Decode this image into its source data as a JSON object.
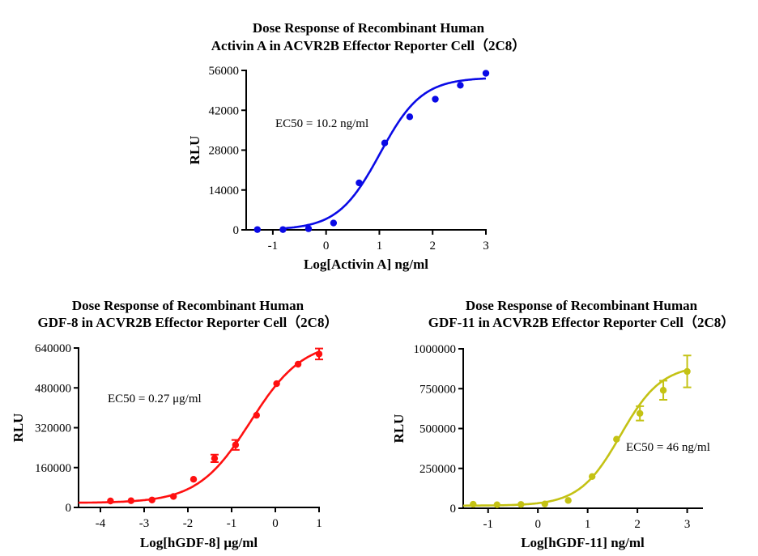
{
  "chart_data": [
    {
      "type": "scatter",
      "title_lines": [
        "Dose Response of Recombinant Human",
        "Activin A in ACVR2B Effector Reporter Cell（2C8）"
      ],
      "xlabel": "Log[Activin A] ng/ml",
      "ylabel": "RLU",
      "annotation": "EC50 = 10.2 ng/ml",
      "color": "#0a0ae6",
      "xlim": [
        -1.5,
        3
      ],
      "ylim": [
        0,
        56000
      ],
      "xticks": [
        -1,
        0,
        1,
        2,
        3
      ],
      "yticks": [
        0,
        14000,
        28000,
        42000,
        56000
      ],
      "x": [
        -1.29,
        -0.81,
        -0.33,
        0.14,
        0.62,
        1.1,
        1.57,
        2.05,
        2.52,
        3.0
      ],
      "y": [
        100,
        100,
        400,
        2400,
        16500,
        30500,
        39700,
        45900,
        50800,
        55000
      ],
      "error": [
        null,
        null,
        null,
        null,
        null,
        null,
        null,
        null,
        null,
        null
      ],
      "fit_curve": true,
      "grid": false
    },
    {
      "type": "scatter",
      "title_lines": [
        "Dose Response of Recombinant Human",
        "GDF-8 in ACVR2B Effector Reporter Cell（2C8）"
      ],
      "xlabel": "Log[hGDF-8] μg/ml",
      "ylabel": "RLU",
      "annotation": "EC50 = 0.27 μg/ml",
      "color": "#ff1010",
      "xlim": [
        -4.5,
        1
      ],
      "ylim": [
        0,
        640000
      ],
      "xticks": [
        -4,
        -3,
        -2,
        -1,
        0,
        1
      ],
      "yticks": [
        0,
        160000,
        320000,
        480000,
        640000
      ],
      "x": [
        -3.77,
        -3.3,
        -2.82,
        -2.33,
        -1.87,
        -1.39,
        -0.91,
        -0.43,
        0.03,
        0.52,
        1.0
      ],
      "y": [
        26000,
        27000,
        30000,
        44000,
        113000,
        197000,
        251000,
        370000,
        497000,
        575000,
        616000
      ],
      "error": [
        null,
        null,
        null,
        null,
        null,
        15000,
        20000,
        null,
        null,
        null,
        22000
      ],
      "fit_curve": true,
      "grid": false
    },
    {
      "type": "scatter",
      "title_lines": [
        "Dose Response of Recombinant Human",
        "GDF-11 in ACVR2B Effector Reporter Cell（2C8）"
      ],
      "xlabel": "Log[hGDF-11] ng/ml",
      "ylabel": "RLU",
      "annotation": "EC50 = 46 ng/ml",
      "color": "#c4c214",
      "xlim": [
        -1.5,
        3.3
      ],
      "ylim": [
        0,
        1000000
      ],
      "xticks": [
        -1,
        0,
        1,
        2,
        3
      ],
      "yticks": [
        0,
        250000,
        500000,
        750000,
        1000000
      ],
      "x": [
        -1.3,
        -0.82,
        -0.34,
        0.14,
        0.61,
        1.09,
        1.58,
        2.05,
        2.52,
        3.0
      ],
      "y": [
        25000,
        22000,
        24000,
        27000,
        49000,
        199000,
        433000,
        595000,
        740000,
        858000
      ],
      "error": [
        null,
        null,
        null,
        null,
        null,
        null,
        null,
        45000,
        60000,
        100000
      ],
      "fit_curve": true,
      "grid": false
    }
  ]
}
